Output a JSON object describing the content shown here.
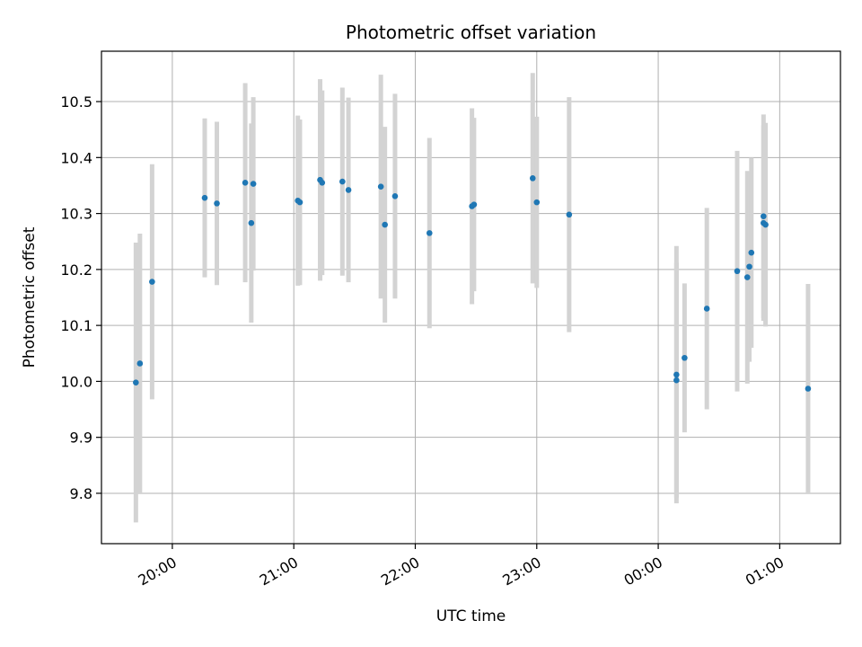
{
  "chart_data": {
    "type": "scatter",
    "title": "Photometric offset variation",
    "xlabel": "UTC time",
    "ylabel": "Photometric offset",
    "x_unit": "hours (UTC, continuing past midnight)",
    "xlim": [
      "19:25",
      "01:30"
    ],
    "ylim": [
      9.71,
      10.59
    ],
    "grid": true,
    "legend": "none",
    "x_ticks": [
      {
        "time": "20:00",
        "label": "20:00"
      },
      {
        "time": "21:00",
        "label": "21:00"
      },
      {
        "time": "22:00",
        "label": "22:00"
      },
      {
        "time": "23:00",
        "label": "23:00"
      },
      {
        "time": "00:00",
        "label": "00:00"
      },
      {
        "time": "01:00",
        "label": "01:00"
      }
    ],
    "y_ticks": [
      {
        "value": 9.8,
        "label": "9.8"
      },
      {
        "value": 9.9,
        "label": "9.9"
      },
      {
        "value": 10.0,
        "label": "10.0"
      },
      {
        "value": 10.1,
        "label": "10.1"
      },
      {
        "value": 10.2,
        "label": "10.2"
      },
      {
        "value": 10.3,
        "label": "10.3"
      },
      {
        "value": 10.4,
        "label": "10.4"
      },
      {
        "value": 10.5,
        "label": "10.5"
      }
    ],
    "point_color": "#1f77b4",
    "errorbar_color": "#d3d3d3",
    "points": [
      {
        "time": "19:42",
        "y": 9.998,
        "err": 0.25
      },
      {
        "time": "19:44",
        "y": 10.032,
        "err": 0.232
      },
      {
        "time": "19:50",
        "y": 10.178,
        "err": 0.21
      },
      {
        "time": "20:16",
        "y": 10.328,
        "err": 0.142
      },
      {
        "time": "20:22",
        "y": 10.318,
        "err": 0.146
      },
      {
        "time": "20:36",
        "y": 10.355,
        "err": 0.178
      },
      {
        "time": "20:39",
        "y": 10.283,
        "err": 0.178
      },
      {
        "time": "20:40",
        "y": 10.353,
        "err": 0.155
      },
      {
        "time": "21:02",
        "y": 10.323,
        "err": 0.152
      },
      {
        "time": "21:03",
        "y": 10.32,
        "err": 0.148
      },
      {
        "time": "21:13",
        "y": 10.36,
        "err": 0.18
      },
      {
        "time": "21:14",
        "y": 10.355,
        "err": 0.165
      },
      {
        "time": "21:24",
        "y": 10.357,
        "err": 0.168
      },
      {
        "time": "21:27",
        "y": 10.342,
        "err": 0.165
      },
      {
        "time": "21:43",
        "y": 10.348,
        "err": 0.2
      },
      {
        "time": "21:45",
        "y": 10.28,
        "err": 0.175
      },
      {
        "time": "21:50",
        "y": 10.331,
        "err": 0.183
      },
      {
        "time": "22:07",
        "y": 10.265,
        "err": 0.17
      },
      {
        "time": "22:28",
        "y": 10.313,
        "err": 0.175
      },
      {
        "time": "22:29",
        "y": 10.316,
        "err": 0.155
      },
      {
        "time": "22:58",
        "y": 10.363,
        "err": 0.188
      },
      {
        "time": "23:00",
        "y": 10.32,
        "err": 0.153
      },
      {
        "time": "23:16",
        "y": 10.298,
        "err": 0.21
      },
      {
        "time": "00:09",
        "y": 10.012,
        "err": 0.23
      },
      {
        "time": "00:09",
        "y": 10.002,
        "err": 0.21
      },
      {
        "time": "00:13",
        "y": 10.042,
        "err": 0.133
      },
      {
        "time": "00:24",
        "y": 10.13,
        "err": 0.18
      },
      {
        "time": "00:39",
        "y": 10.197,
        "err": 0.215
      },
      {
        "time": "00:44",
        "y": 10.186,
        "err": 0.19
      },
      {
        "time": "00:45",
        "y": 10.205,
        "err": 0.17
      },
      {
        "time": "00:46",
        "y": 10.23,
        "err": 0.17
      },
      {
        "time": "00:52",
        "y": 10.295,
        "err": 0.182
      },
      {
        "time": "00:52",
        "y": 10.283,
        "err": 0.175
      },
      {
        "time": "00:53",
        "y": 10.28,
        "err": 0.182
      },
      {
        "time": "01:14",
        "y": 9.987,
        "err": 0.187
      }
    ]
  }
}
